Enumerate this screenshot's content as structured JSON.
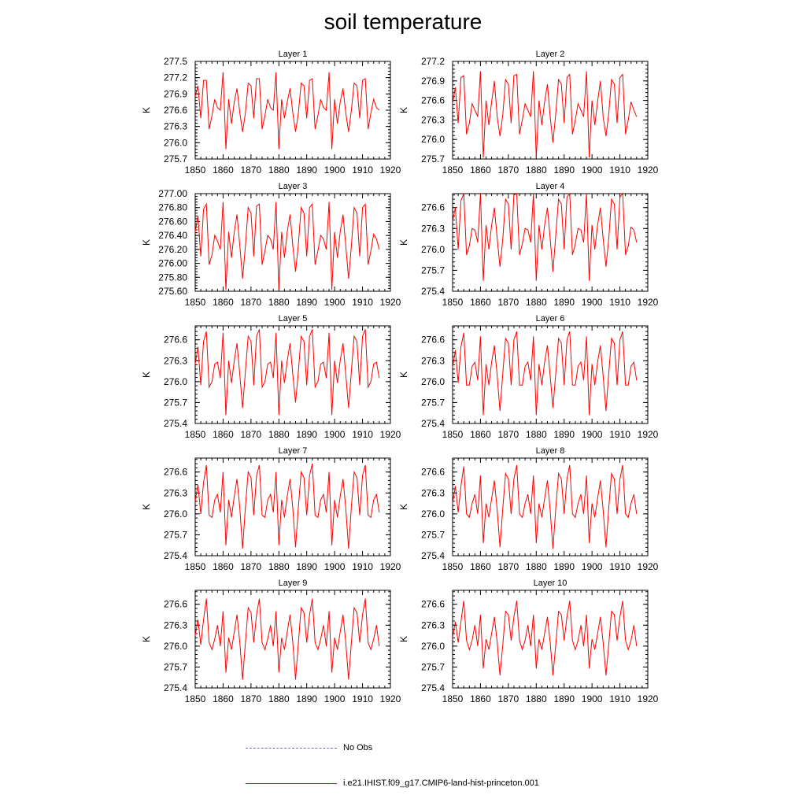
{
  "title": "soil temperature",
  "legend": [
    {
      "label": "No Obs",
      "color": "#6a6acd",
      "style": "dashed"
    },
    {
      "label": "i.e21.IHIST.f09_g17.CMIP6-land-hist-princeton.001",
      "color": "#ff0000",
      "style": "solid"
    }
  ],
  "chart_data": [
    {
      "type": "line",
      "title": "Layer 1",
      "ylabel": "K",
      "xlabel": "",
      "xlim": [
        1850,
        1920
      ],
      "ylim": [
        275.7,
        277.5
      ],
      "xticks": [
        1850,
        1860,
        1870,
        1880,
        1890,
        1900,
        1910,
        1920
      ],
      "yticks": [
        "275.7",
        "276.0",
        "276.3",
        "276.6",
        "276.9",
        "277.2",
        "277.5"
      ],
      "series": [
        {
          "color": "#ff0000",
          "x_start": 1850,
          "x_step": 1,
          "values": [
            276.85,
            277.05,
            276.45,
            277.15,
            277.15,
            276.25,
            276.5,
            276.8,
            276.65,
            276.6,
            277.3,
            275.88,
            276.8,
            276.35,
            276.75,
            277.0,
            276.55,
            276.2,
            276.55,
            277.1,
            277.05,
            276.45,
            277.18,
            277.18,
            276.25,
            276.5,
            276.8,
            276.65,
            276.6,
            277.3,
            275.88,
            276.8,
            276.45,
            276.75,
            277.0,
            276.55,
            276.2,
            276.55,
            277.1,
            277.05,
            276.45,
            277.15,
            277.18,
            276.25,
            276.5,
            276.8,
            276.65,
            276.6,
            277.3,
            275.88,
            276.8,
            276.35,
            276.75,
            277.0,
            276.55,
            276.2,
            276.6,
            277.1,
            277.05,
            276.45,
            277.15,
            277.18,
            276.25,
            276.55,
            276.8,
            276.65,
            276.6
          ]
        }
      ]
    },
    {
      "type": "line",
      "title": "Layer 2",
      "ylabel": "K",
      "xlabel": "",
      "xlim": [
        1850,
        1920
      ],
      "ylim": [
        275.7,
        277.2
      ],
      "xticks": [
        1850,
        1860,
        1870,
        1880,
        1890,
        1900,
        1910,
        1920
      ],
      "yticks": [
        "275.7",
        "276.0",
        "276.3",
        "276.6",
        "276.9",
        "277.2"
      ],
      "series": [
        {
          "color": "#ff0000",
          "x_start": 1850,
          "x_step": 1,
          "values": [
            276.55,
            276.8,
            276.25,
            276.95,
            276.98,
            276.08,
            276.25,
            276.55,
            276.45,
            276.35,
            277.05,
            275.72,
            276.6,
            276.22,
            276.58,
            276.9,
            276.35,
            276.05,
            276.38,
            276.92,
            276.85,
            276.25,
            276.98,
            277.0,
            276.08,
            276.3,
            276.55,
            276.45,
            276.35,
            277.05,
            275.72,
            276.6,
            276.22,
            276.58,
            276.85,
            276.35,
            275.95,
            276.4,
            276.92,
            276.85,
            276.25,
            276.95,
            277.0,
            276.08,
            276.3,
            276.55,
            276.45,
            276.35,
            277.05,
            275.72,
            276.6,
            276.22,
            276.58,
            276.9,
            276.35,
            276.05,
            276.4,
            276.92,
            276.85,
            276.25,
            276.95,
            277.0,
            276.08,
            276.3,
            276.58,
            276.45,
            276.35
          ]
        }
      ]
    },
    {
      "type": "line",
      "title": "Layer 3",
      "ylabel": "K",
      "xlabel": "",
      "xlim": [
        1850,
        1920
      ],
      "ylim": [
        275.6,
        277.0
      ],
      "xticks": [
        1850,
        1860,
        1870,
        1880,
        1890,
        1900,
        1910,
        1920
      ],
      "yticks": [
        "275.60",
        "275.80",
        "276.00",
        "276.20",
        "276.40",
        "276.60",
        "276.80",
        "277.00"
      ],
      "series": [
        {
          "color": "#ff0000",
          "x_start": 1850,
          "x_step": 1,
          "values": [
            276.45,
            276.68,
            276.1,
            276.78,
            276.85,
            275.98,
            276.12,
            276.4,
            276.32,
            276.2,
            276.88,
            275.62,
            276.45,
            276.08,
            276.45,
            276.7,
            276.25,
            275.78,
            276.25,
            276.8,
            276.72,
            276.1,
            276.82,
            276.85,
            275.98,
            276.18,
            276.4,
            276.35,
            276.2,
            276.88,
            275.62,
            276.45,
            276.08,
            276.45,
            276.7,
            276.25,
            275.88,
            276.28,
            276.8,
            276.72,
            276.1,
            276.8,
            276.85,
            275.98,
            276.18,
            276.4,
            276.35,
            276.2,
            276.88,
            275.62,
            276.45,
            276.08,
            276.45,
            276.7,
            276.25,
            275.78,
            276.25,
            276.8,
            276.72,
            276.1,
            276.8,
            276.85,
            275.98,
            276.18,
            276.42,
            276.35,
            276.2
          ]
        }
      ]
    },
    {
      "type": "line",
      "title": "Layer 4",
      "ylabel": "K",
      "xlabel": "",
      "xlim": [
        1850,
        1920
      ],
      "ylim": [
        275.4,
        276.8
      ],
      "xticks": [
        1850,
        1860,
        1870,
        1880,
        1890,
        1900,
        1910,
        1920
      ],
      "yticks": [
        "275.4",
        "275.7",
        "276.0",
        "276.3",
        "276.6"
      ],
      "series": [
        {
          "color": "#ff0000",
          "x_start": 1850,
          "x_step": 1,
          "values": [
            276.4,
            276.6,
            276.0,
            276.7,
            276.8,
            275.92,
            276.05,
            276.3,
            276.28,
            276.1,
            276.8,
            275.55,
            276.35,
            276.0,
            276.35,
            276.6,
            276.15,
            275.75,
            276.15,
            276.72,
            276.65,
            276.0,
            276.78,
            276.8,
            275.92,
            276.08,
            276.3,
            276.28,
            276.1,
            276.8,
            275.55,
            276.35,
            276.0,
            276.35,
            276.6,
            276.15,
            275.68,
            276.2,
            276.72,
            276.65,
            276.0,
            276.75,
            276.8,
            275.92,
            276.08,
            276.3,
            276.28,
            276.1,
            276.8,
            275.55,
            276.35,
            276.0,
            276.35,
            276.6,
            276.15,
            275.75,
            276.15,
            276.72,
            276.65,
            276.0,
            276.75,
            276.8,
            275.92,
            276.05,
            276.32,
            276.28,
            276.1
          ]
        }
      ]
    },
    {
      "type": "line",
      "title": "Layer 5",
      "ylabel": "K",
      "xlabel": "",
      "xlim": [
        1850,
        1920
      ],
      "ylim": [
        275.4,
        276.8
      ],
      "xticks": [
        1850,
        1860,
        1870,
        1880,
        1890,
        1900,
        1910,
        1920
      ],
      "yticks": [
        "275.4",
        "275.7",
        "276.0",
        "276.3",
        "276.6"
      ],
      "series": [
        {
          "color": "#ff0000",
          "x_start": 1850,
          "x_step": 1,
          "values": [
            276.25,
            276.5,
            275.95,
            276.58,
            276.72,
            275.92,
            276.0,
            276.25,
            276.28,
            276.05,
            276.7,
            275.52,
            276.3,
            275.98,
            276.3,
            276.55,
            276.1,
            275.62,
            276.15,
            276.65,
            276.58,
            275.95,
            276.65,
            276.75,
            275.92,
            276.0,
            276.25,
            276.28,
            276.05,
            276.7,
            275.52,
            276.3,
            275.98,
            276.3,
            276.55,
            276.1,
            275.7,
            276.15,
            276.65,
            276.58,
            275.95,
            276.65,
            276.75,
            275.92,
            276.0,
            276.25,
            276.28,
            276.05,
            276.7,
            275.52,
            276.3,
            275.98,
            276.3,
            276.55,
            276.1,
            275.62,
            276.15,
            276.65,
            276.58,
            275.95,
            276.65,
            276.75,
            275.92,
            276.0,
            276.25,
            276.28,
            276.05
          ]
        }
      ]
    },
    {
      "type": "line",
      "title": "Layer 6",
      "ylabel": "K",
      "xlabel": "",
      "xlim": [
        1850,
        1920
      ],
      "ylim": [
        275.4,
        276.8
      ],
      "xticks": [
        1850,
        1860,
        1870,
        1880,
        1890,
        1900,
        1910,
        1920
      ],
      "yticks": [
        "275.4",
        "275.7",
        "276.0",
        "276.3",
        "276.6"
      ],
      "series": [
        {
          "color": "#ff0000",
          "x_start": 1850,
          "x_step": 1,
          "values": [
            276.2,
            276.45,
            275.98,
            276.5,
            276.7,
            275.95,
            275.95,
            276.22,
            276.28,
            276.02,
            276.65,
            275.52,
            276.25,
            275.95,
            276.28,
            276.52,
            276.08,
            275.58,
            276.12,
            276.62,
            276.55,
            275.95,
            276.6,
            276.72,
            275.95,
            275.95,
            276.22,
            276.28,
            276.02,
            276.65,
            275.52,
            276.25,
            275.95,
            276.28,
            276.52,
            276.08,
            275.62,
            276.12,
            276.62,
            276.55,
            275.95,
            276.6,
            276.72,
            275.95,
            275.95,
            276.22,
            276.28,
            276.02,
            276.65,
            275.52,
            276.25,
            275.95,
            276.28,
            276.52,
            276.08,
            275.58,
            276.12,
            276.62,
            276.55,
            275.95,
            276.6,
            276.72,
            275.95,
            275.95,
            276.22,
            276.28,
            276.02
          ]
        }
      ]
    },
    {
      "type": "line",
      "title": "Layer 7",
      "ylabel": "K",
      "xlabel": "",
      "xlim": [
        1850,
        1920
      ],
      "ylim": [
        275.4,
        276.8
      ],
      "xticks": [
        1850,
        1860,
        1870,
        1880,
        1890,
        1900,
        1910,
        1920
      ],
      "yticks": [
        "275.4",
        "275.7",
        "276.0",
        "276.3",
        "276.6"
      ],
      "series": [
        {
          "color": "#ff0000",
          "x_start": 1850,
          "x_step": 1,
          "values": [
            276.18,
            276.42,
            276.0,
            276.45,
            276.7,
            275.98,
            275.95,
            276.2,
            276.28,
            276.02,
            276.6,
            275.55,
            276.2,
            275.95,
            276.25,
            276.5,
            276.08,
            275.5,
            276.1,
            276.6,
            276.52,
            275.98,
            276.55,
            276.7,
            275.98,
            275.95,
            276.2,
            276.28,
            276.02,
            276.6,
            275.55,
            276.2,
            275.95,
            276.25,
            276.5,
            276.08,
            275.52,
            276.1,
            276.6,
            276.52,
            275.98,
            276.55,
            276.72,
            275.98,
            275.95,
            276.2,
            276.28,
            276.02,
            276.6,
            275.55,
            276.2,
            275.95,
            276.25,
            276.5,
            276.08,
            275.5,
            276.1,
            276.6,
            276.52,
            275.98,
            276.55,
            276.7,
            275.98,
            275.95,
            276.2,
            276.28,
            276.02
          ]
        }
      ]
    },
    {
      "type": "line",
      "title": "Layer 8",
      "ylabel": "K",
      "xlabel": "",
      "xlim": [
        1850,
        1920
      ],
      "ylim": [
        275.4,
        276.8
      ],
      "xticks": [
        1850,
        1860,
        1870,
        1880,
        1890,
        1900,
        1910,
        1920
      ],
      "yticks": [
        "275.4",
        "275.7",
        "276.0",
        "276.3",
        "276.6"
      ],
      "series": [
        {
          "color": "#ff0000",
          "x_start": 1850,
          "x_step": 1,
          "values": [
            276.15,
            276.4,
            276.02,
            276.4,
            276.68,
            276.0,
            275.95,
            276.15,
            276.28,
            276.0,
            276.55,
            275.58,
            276.15,
            275.95,
            276.22,
            276.48,
            276.05,
            275.52,
            276.08,
            276.58,
            276.5,
            276.0,
            276.5,
            276.7,
            276.0,
            275.95,
            276.15,
            276.28,
            276.0,
            276.55,
            275.58,
            276.15,
            275.95,
            276.22,
            276.48,
            276.05,
            275.5,
            276.08,
            276.58,
            276.5,
            276.0,
            276.5,
            276.7,
            276.0,
            275.95,
            276.15,
            276.28,
            276.0,
            276.55,
            275.58,
            276.15,
            275.95,
            276.22,
            276.48,
            276.05,
            275.52,
            276.08,
            276.58,
            276.5,
            276.0,
            276.5,
            276.7,
            276.0,
            275.95,
            276.15,
            276.28,
            276.0
          ]
        }
      ]
    },
    {
      "type": "line",
      "title": "Layer 9",
      "ylabel": "K",
      "xlabel": "",
      "xlim": [
        1850,
        1920
      ],
      "ylim": [
        275.4,
        276.8
      ],
      "xticks": [
        1850,
        1860,
        1870,
        1880,
        1890,
        1900,
        1910,
        1920
      ],
      "yticks": [
        "275.4",
        "275.7",
        "276.0",
        "276.3",
        "276.6"
      ],
      "series": [
        {
          "color": "#ff0000",
          "x_start": 1850,
          "x_step": 1,
          "values": [
            276.15,
            276.38,
            276.02,
            276.38,
            276.68,
            276.05,
            275.95,
            276.1,
            276.3,
            276.0,
            276.5,
            275.62,
            276.12,
            275.95,
            276.2,
            276.45,
            276.05,
            275.52,
            276.05,
            276.55,
            276.48,
            276.05,
            276.45,
            276.68,
            276.05,
            275.95,
            276.1,
            276.3,
            276.0,
            276.5,
            275.62,
            276.12,
            275.95,
            276.2,
            276.45,
            276.05,
            275.52,
            276.05,
            276.55,
            276.48,
            276.05,
            276.45,
            276.68,
            276.05,
            275.95,
            276.1,
            276.3,
            276.0,
            276.5,
            275.62,
            276.12,
            275.95,
            276.2,
            276.45,
            276.05,
            275.52,
            276.05,
            276.55,
            276.48,
            276.05,
            276.45,
            276.68,
            276.05,
            275.95,
            276.1,
            276.3,
            276.0
          ]
        }
      ]
    },
    {
      "type": "line",
      "title": "Layer 10",
      "ylabel": "K",
      "xlabel": "",
      "xlim": [
        1850,
        1920
      ],
      "ylim": [
        275.4,
        276.8
      ],
      "xticks": [
        1850,
        1860,
        1870,
        1880,
        1890,
        1900,
        1910,
        1920
      ],
      "yticks": [
        "275.4",
        "275.7",
        "276.0",
        "276.3",
        "276.6"
      ],
      "series": [
        {
          "color": "#ff0000",
          "x_start": 1850,
          "x_step": 1,
          "values": [
            276.12,
            276.35,
            276.05,
            276.35,
            276.65,
            276.08,
            275.95,
            276.08,
            276.3,
            276.0,
            276.45,
            275.68,
            276.1,
            275.95,
            276.18,
            276.42,
            276.05,
            275.58,
            276.02,
            276.5,
            276.45,
            276.08,
            276.42,
            276.65,
            276.08,
            275.95,
            276.08,
            276.3,
            276.0,
            276.45,
            275.68,
            276.1,
            275.95,
            276.18,
            276.42,
            276.05,
            275.58,
            276.02,
            276.5,
            276.45,
            276.08,
            276.42,
            276.65,
            276.08,
            275.95,
            276.08,
            276.3,
            276.0,
            276.45,
            275.68,
            276.1,
            275.95,
            276.18,
            276.42,
            276.05,
            275.58,
            276.02,
            276.5,
            276.45,
            276.08,
            276.42,
            276.65,
            276.08,
            275.95,
            276.08,
            276.3,
            276.0
          ]
        }
      ]
    }
  ]
}
